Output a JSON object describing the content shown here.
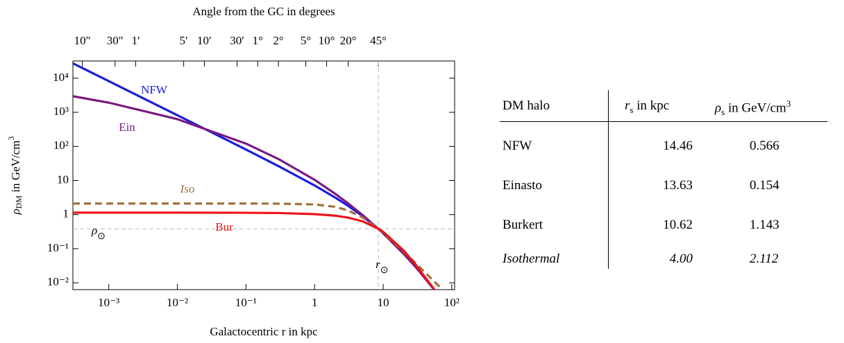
{
  "chart_data": {
    "type": "line",
    "title": "Angle from the GC in degrees",
    "x_label": "Galactocentric r in kpc",
    "y_label": [
      "ρ",
      "DM",
      " in GeV/cm",
      "3"
    ],
    "xscale": "log",
    "yscale": "log",
    "xlim": [
      0.0003,
      110
    ],
    "ylim": [
      0.0063,
      32000
    ],
    "xticks": [
      {
        "value": 0.001,
        "label": "10⁻³"
      },
      {
        "value": 0.01,
        "label": "10⁻²"
      },
      {
        "value": 0.1,
        "label": "10⁻¹"
      },
      1,
      10,
      {
        "value": 100,
        "label": "10²"
      }
    ],
    "yticks": [
      {
        "value": 0.01,
        "label": "10⁻²"
      },
      {
        "value": 0.1,
        "label": "10⁻¹"
      },
      1,
      10,
      {
        "value": 100,
        "label": "10²"
      },
      {
        "value": 1000,
        "label": "10³"
      },
      {
        "value": 10000,
        "label": "10⁴"
      }
    ],
    "x2ticks": [
      {
        "value": 0.000412,
        "label": "10″"
      },
      {
        "value": 0.001236,
        "label": "30″"
      },
      {
        "value": 0.002473,
        "label": "1′"
      },
      {
        "value": 0.01236,
        "label": "5′"
      },
      {
        "value": 0.02473,
        "label": "10′"
      },
      {
        "value": 0.0742,
        "label": "30′"
      },
      {
        "value": 0.1484,
        "label": "1°"
      },
      {
        "value": 0.2968,
        "label": "2°"
      },
      {
        "value": 0.7437,
        "label": "5°"
      },
      {
        "value": 1.499,
        "label": "10°"
      },
      {
        "value": 3.094,
        "label": "20°"
      },
      {
        "value": 8.5,
        "label": "45°"
      }
    ],
    "x": [
      0.0003,
      0.001,
      0.01,
      0.1,
      0.3,
      1,
      2,
      3,
      5,
      8.5,
      10,
      20,
      30,
      60,
      100
    ],
    "series": [
      {
        "name": "NFW",
        "color": "#1c1ce0",
        "dash": false,
        "values": [
          27300,
          8200,
          820,
          81,
          26.2,
          7.16,
          3.16,
          1.87,
          0.904,
          0.382,
          0.286,
          0.0721,
          0.0288,
          0.00515,
          0.0013
        ]
      },
      {
        "name": "Ein",
        "color": "#7a1a80",
        "dash": false,
        "values": [
          2960,
          1920,
          630,
          121,
          42.3,
          10.5,
          4.07,
          2.22,
          0.975,
          0.382,
          0.282,
          0.0697,
          0.0285,
          0.0053,
          0.00134
        ]
      },
      {
        "name": "Iso",
        "color": "#a2703a",
        "dash": true,
        "style": "italic",
        "values": [
          2.112,
          2.112,
          2.112,
          2.111,
          2.1,
          1.988,
          1.69,
          1.352,
          0.824,
          0.383,
          0.291,
          0.0812,
          0.0369,
          0.00935,
          0.00337
        ]
      },
      {
        "name": "Bur",
        "color": "#ec1418",
        "dash": false,
        "values": [
          1.143,
          1.143,
          1.142,
          1.132,
          1.111,
          1.035,
          0.929,
          0.825,
          0.636,
          0.387,
          0.312,
          0.0872,
          0.0333,
          0.00522,
          0.00122
        ]
      }
    ],
    "hline": {
      "value": 0.383,
      "label": [
        "ρ",
        "⊙"
      ]
    },
    "vline": {
      "value": 8.5,
      "label": [
        "r",
        "⊙"
      ]
    },
    "grid": false
  },
  "table": {
    "header": [
      [
        "DM halo"
      ],
      [
        "r",
        "s",
        " in kpc"
      ],
      [
        "ρ",
        "s",
        " in GeV/cm",
        "3"
      ]
    ],
    "rows": [
      [
        "NFW",
        "14.46",
        "0.566"
      ],
      [
        "Einasto",
        "13.63",
        "0.154"
      ],
      [
        "Burkert",
        "10.62",
        "1.143"
      ],
      [
        "Isothermal",
        "4.00",
        "2.112"
      ]
    ]
  }
}
